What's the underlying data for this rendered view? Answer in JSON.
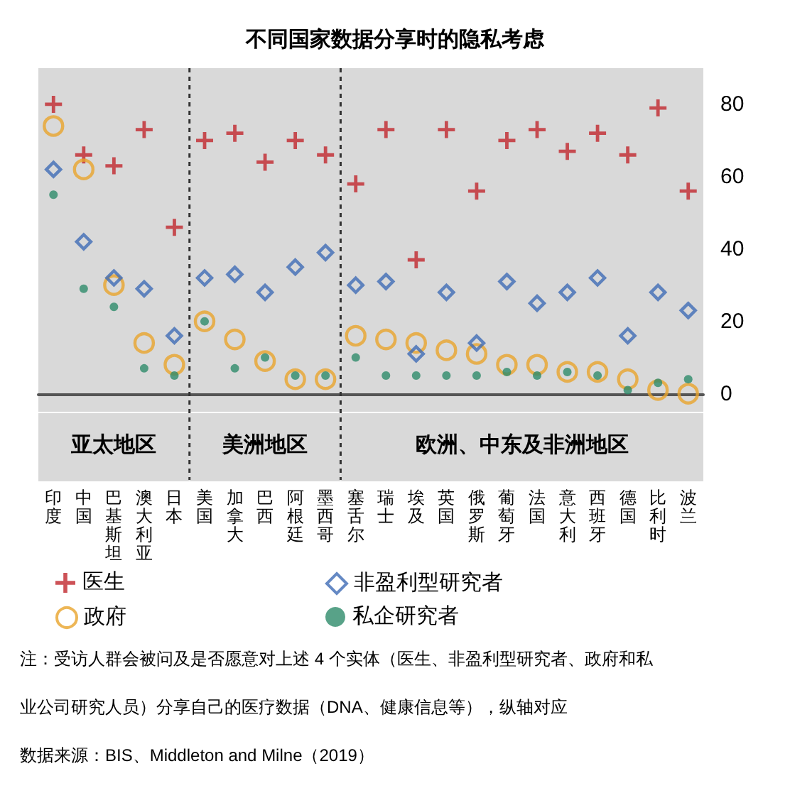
{
  "chart_data": {
    "type": "scatter",
    "title": "不同国家数据分享时的隐私考虑",
    "categories": [
      "印度",
      "中国",
      "巴基斯坦",
      "澳大利亚",
      "日本",
      "美国",
      "加拿大",
      "巴西",
      "阿根廷",
      "墨西哥",
      "塞舌尔",
      "瑞士",
      "埃及",
      "英国",
      "俄罗斯",
      "葡萄牙",
      "法国",
      "意大利",
      "西班牙",
      "德国",
      "比利时",
      "波兰"
    ],
    "series": [
      {
        "name": "医生",
        "color": "#c0272d",
        "marker": "cross",
        "values": [
          80,
          66,
          63,
          73,
          46,
          70,
          72,
          64,
          70,
          66,
          58,
          73,
          37,
          73,
          56,
          70,
          73,
          67,
          72,
          66,
          79,
          56
        ]
      },
      {
        "name": "非盈利型研究者",
        "color": "#3f6bb5",
        "marker": "diamond",
        "values": [
          62,
          42,
          32,
          29,
          16,
          32,
          33,
          28,
          35,
          39,
          30,
          31,
          11,
          28,
          14,
          31,
          25,
          28,
          32,
          16,
          28,
          23
        ]
      },
      {
        "name": "政府",
        "color": "#e8a42c",
        "marker": "circle",
        "values": [
          74,
          62,
          30,
          14,
          8,
          20,
          15,
          9,
          4,
          4,
          16,
          15,
          14,
          12,
          11,
          8,
          8,
          6,
          6,
          4,
          1,
          0
        ]
      },
      {
        "name": "私企研究者",
        "color": "#2e8b6a",
        "marker": "dot",
        "values": [
          55,
          29,
          24,
          7,
          5,
          20,
          7,
          10,
          5,
          5,
          10,
          5,
          5,
          5,
          5,
          6,
          5,
          6,
          5,
          1,
          3,
          4
        ]
      }
    ],
    "ylim": [
      -5,
      90
    ],
    "yticks": [
      0,
      20,
      40,
      60,
      80
    ],
    "grid": false,
    "legend": "bottom",
    "bands": [
      {
        "axis": "x",
        "from": "印度",
        "to": "日本",
        "label": "亚太地区",
        "color": "#d9d9d9"
      },
      {
        "axis": "x",
        "from": "美国",
        "to": "墨西哥",
        "label": "美洲地区",
        "color": "#d9d9d9"
      },
      {
        "axis": "x",
        "from": "塞舌尔",
        "to": "波兰",
        "label": "欧洲、中东及非洲地区",
        "color": "#d9d9d9"
      }
    ],
    "annotations": [
      "注：受访人群会被问及是否愿意对上述 4 个实体（医生、非盈利型研究者、政府和私",
      "业公司研究人员）分享自己的医疗数据（DNA、健康信息等），纵轴对应",
      "数据来源：BIS、Middleton and Milne（2019）"
    ]
  }
}
